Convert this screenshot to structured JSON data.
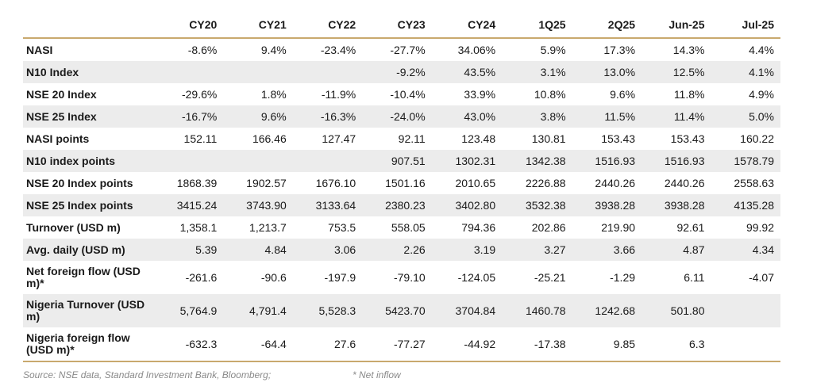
{
  "columns": [
    "CY20",
    "CY21",
    "CY22",
    "CY23",
    "CY24",
    "1Q25",
    "2Q25",
    "Jun-25",
    "Jul-25"
  ],
  "rows": [
    {
      "label": "NASI",
      "values": [
        "-8.6%",
        "9.4%",
        "-23.4%",
        "-27.7%",
        "34.06%",
        "5.9%",
        "17.3%",
        "14.3%",
        "4.4%"
      ]
    },
    {
      "label": "N10 Index",
      "values": [
        "",
        "",
        "",
        "-9.2%",
        "43.5%",
        "3.1%",
        "13.0%",
        "12.5%",
        "4.1%"
      ]
    },
    {
      "label": "NSE 20 Index",
      "values": [
        "-29.6%",
        "1.8%",
        "-11.9%",
        "-10.4%",
        "33.9%",
        "10.8%",
        "9.6%",
        "11.8%",
        "4.9%"
      ]
    },
    {
      "label": "NSE 25 Index",
      "values": [
        "-16.7%",
        "9.6%",
        "-16.3%",
        "-24.0%",
        "43.0%",
        "3.8%",
        "11.5%",
        "11.4%",
        "5.0%"
      ]
    },
    {
      "label": "NASI points",
      "values": [
        "152.11",
        "166.46",
        "127.47",
        "92.11",
        "123.48",
        "130.81",
        "153.43",
        "153.43",
        "160.22"
      ]
    },
    {
      "label": "N10 index points",
      "values": [
        "",
        "",
        "",
        "907.51",
        "1302.31",
        "1342.38",
        "1516.93",
        "1516.93",
        "1578.79"
      ]
    },
    {
      "label": "NSE 20 Index points",
      "values": [
        "1868.39",
        "1902.57",
        "1676.10",
        "1501.16",
        "2010.65",
        "2226.88",
        "2440.26",
        "2440.26",
        "2558.63"
      ]
    },
    {
      "label": "NSE 25 Index points",
      "values": [
        "3415.24",
        "3743.90",
        "3133.64",
        "2380.23",
        "3402.80",
        "3532.38",
        "3938.28",
        "3938.28",
        "4135.28"
      ]
    },
    {
      "label": "Turnover (USD m)",
      "values": [
        "1,358.1",
        "1,213.7",
        "753.5",
        "558.05",
        "794.36",
        "202.86",
        "219.90",
        "92.61",
        "99.92"
      ]
    },
    {
      "label": "Avg. daily (USD m)",
      "values": [
        "5.39",
        "4.84",
        "3.06",
        "2.26",
        "3.19",
        "3.27",
        "3.66",
        "4.87",
        "4.34"
      ]
    },
    {
      "label": "Net foreign flow (USD m)*",
      "values": [
        "-261.6",
        "-90.6",
        "-197.9",
        "-79.10",
        "-124.05",
        "-25.21",
        "-1.29",
        "6.11",
        "-4.07"
      ]
    },
    {
      "label": "Nigeria Turnover (USD m)",
      "values": [
        "5,764.9",
        "4,791.4",
        "5,528.3",
        "5423.70",
        "3704.84",
        "1460.78",
        "1242.68",
        "501.80",
        ""
      ]
    },
    {
      "label": "Nigeria foreign flow (USD m)*",
      "values": [
        "-632.3",
        "-64.4",
        "27.6",
        "-77.27",
        "-44.92",
        "-17.38",
        "9.85",
        "6.3",
        ""
      ]
    }
  ],
  "footnotes": {
    "source": "Source: NSE data, Standard Investment Bank, Bloomberg;",
    "inflow": "* Net inflow"
  },
  "colors": {
    "rule": "#c9a96e",
    "shade": "#ececec",
    "note": "#8a8a8a"
  }
}
